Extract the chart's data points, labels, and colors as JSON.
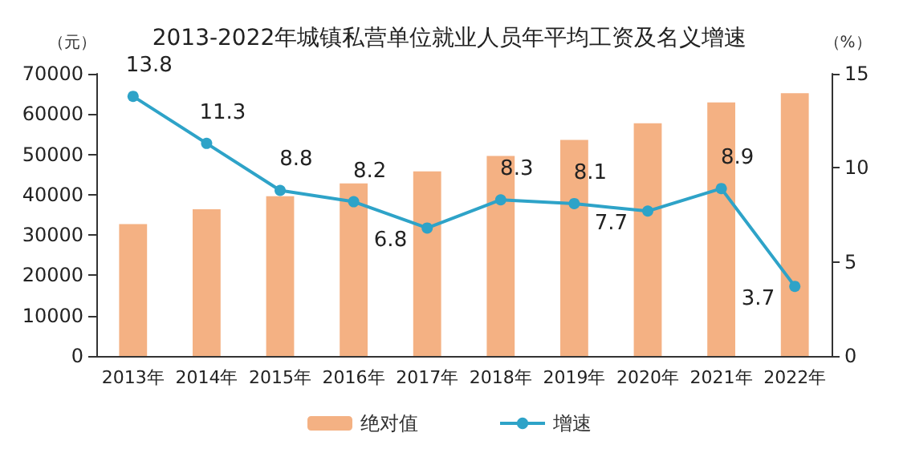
{
  "chart_data": {
    "type": "bar",
    "title": "2013-2022年城镇私营单位就业人员年平均工资及名义增速",
    "ylabel": "（元）",
    "y2label": "（%）",
    "categories": [
      "2013年",
      "2014年",
      "2015年",
      "2016年",
      "2017年",
      "2018年",
      "2019年",
      "2020年",
      "2021年",
      "2022年"
    ],
    "series": [
      {
        "name": "绝对值",
        "color": "#f4b183",
        "values": [
          32700,
          36400,
          39600,
          42800,
          45800,
          49600,
          53600,
          57700,
          62900,
          65200
        ]
      },
      {
        "name": "增速",
        "type": "line",
        "axis": "y2",
        "color": "#2ea3c8",
        "marker": "circle",
        "data_labels": true,
        "values": [
          13.8,
          11.3,
          8.8,
          8.2,
          6.8,
          8.3,
          8.1,
          7.7,
          8.9,
          3.7
        ]
      }
    ],
    "ylim": [
      0,
      70000
    ],
    "yticks": [
      0,
      10000,
      20000,
      30000,
      40000,
      50000,
      60000,
      70000
    ],
    "y2lim": [
      0,
      15
    ],
    "y2ticks": [
      0,
      5,
      10,
      15
    ],
    "grid": false,
    "legend": "bottom"
  }
}
